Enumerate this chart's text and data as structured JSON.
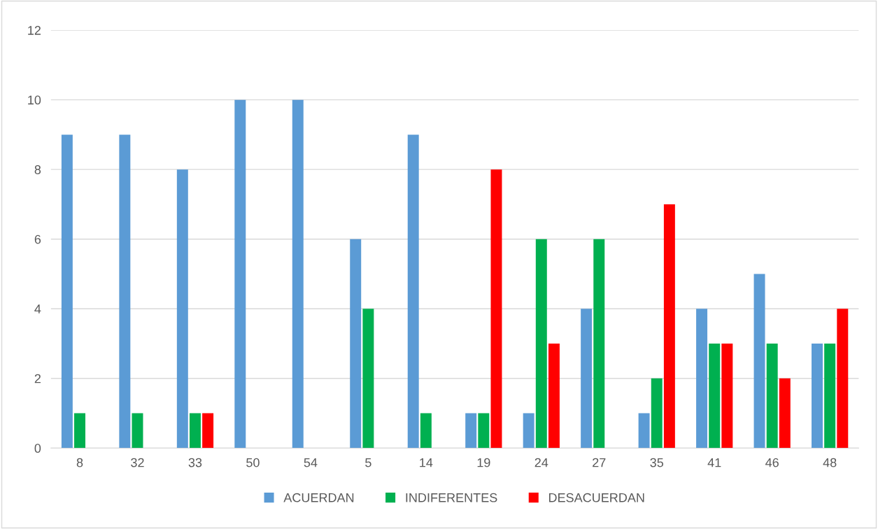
{
  "chart_data": {
    "type": "bar",
    "categories": [
      "8",
      "32",
      "33",
      "50",
      "54",
      "5",
      "14",
      "19",
      "24",
      "27",
      "35",
      "41",
      "46",
      "48"
    ],
    "series": [
      {
        "name": "ACUERDAN",
        "color": "#5b9bd5",
        "values": [
          9,
          9,
          8,
          10,
          10,
          6,
          9,
          1,
          1,
          4,
          1,
          4,
          5,
          3
        ]
      },
      {
        "name": "INDIFERENTES",
        "color": "#00b050",
        "values": [
          1,
          1,
          1,
          0,
          0,
          4,
          1,
          1,
          6,
          6,
          2,
          3,
          3,
          3
        ]
      },
      {
        "name": "DESACUERDAN",
        "color": "#ff0000",
        "values": [
          0,
          0,
          1,
          0,
          0,
          0,
          0,
          8,
          3,
          0,
          7,
          3,
          2,
          4
        ]
      }
    ],
    "ylim": [
      0,
      12
    ],
    "yticks": [
      0,
      2,
      4,
      6,
      8,
      10,
      12
    ],
    "grid": "y",
    "legend": "bottom"
  }
}
